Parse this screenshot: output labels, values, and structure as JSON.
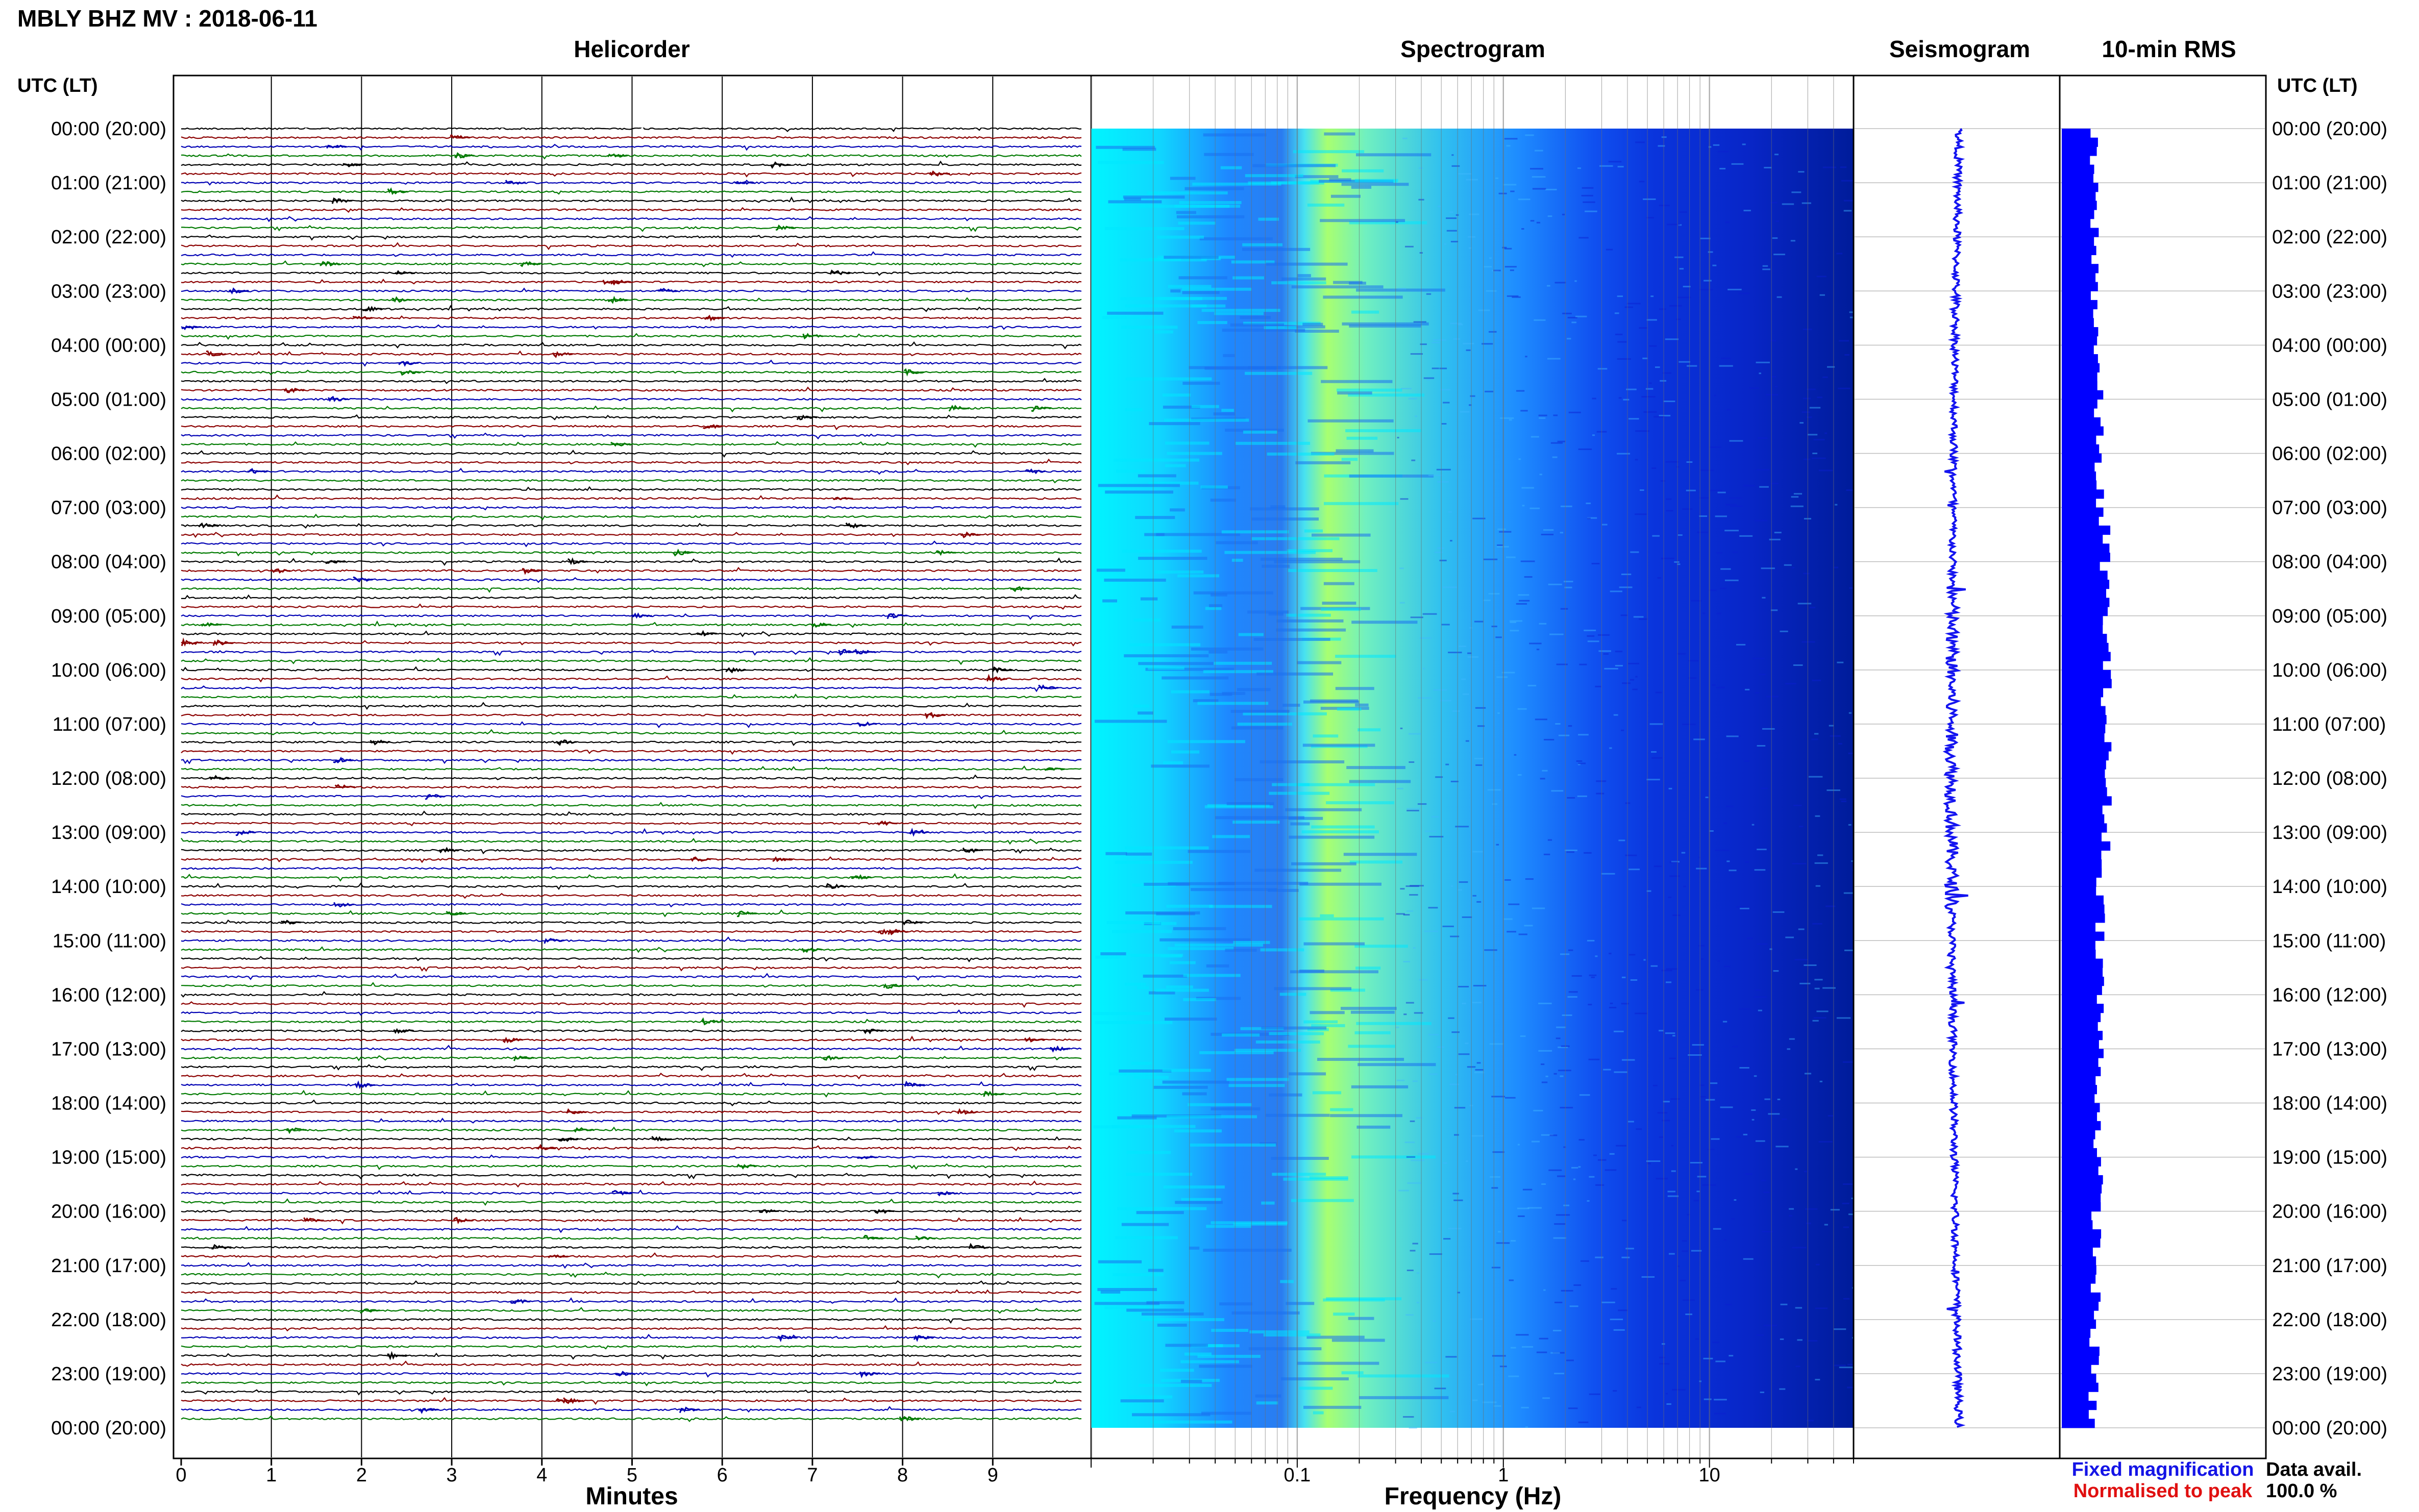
{
  "page": {
    "title": "MBLY BHZ MV : 2018-06-11",
    "left_axis_header": "UTC (LT)",
    "right_axis_header": "UTC (LT)"
  },
  "legend": {
    "fixed_label": "Fixed magnification",
    "fixed_color": "#1414e6",
    "normalised_label": "Normalised to peak",
    "normalised_color": "#e01010",
    "avail_label": "Data avail.",
    "avail_value": "100.0 %"
  },
  "colors": {
    "trace_cycle": [
      "#000000",
      "#8b0000",
      "#0000b4",
      "#007a00"
    ],
    "spectrogram_stops": [
      "#00ffff",
      "#1e90ff",
      "#0000e6",
      "#000080"
    ],
    "spectrogram_hot": "#a8ff70",
    "bar_blue": "#0000ff"
  },
  "chart_data": [
    {
      "type": "line",
      "panel": "helicorder",
      "title": "Helicorder",
      "xlabel": "Minutes",
      "ylabel": "",
      "xlim": [
        0,
        10
      ],
      "x_ticks": [
        0,
        1,
        2,
        3,
        4,
        5,
        6,
        7,
        8,
        9
      ],
      "rows_per_hour": 6,
      "row_minutes": 10,
      "time_labels_left": [
        "00:00 (20:00)",
        "01:00 (21:00)",
        "02:00 (22:00)",
        "03:00 (23:00)",
        "04:00 (00:00)",
        "05:00 (01:00)",
        "06:00 (02:00)",
        "07:00 (03:00)",
        "08:00 (04:00)",
        "09:00 (05:00)",
        "10:00 (06:00)",
        "11:00 (07:00)",
        "12:00 (08:00)",
        "13:00 (09:00)",
        "14:00 (10:00)",
        "15:00 (11:00)",
        "16:00 (12:00)",
        "17:00 (13:00)",
        "18:00 (14:00)",
        "19:00 (15:00)",
        "20:00 (16:00)",
        "21:00 (17:00)",
        "22:00 (18:00)",
        "23:00 (19:00)",
        "00:00 (20:00)"
      ]
    },
    {
      "type": "heatmap",
      "panel": "spectrogram",
      "title": "Spectrogram",
      "xlabel": "Frequency (Hz)",
      "ylabel": "",
      "x_scale": "log",
      "xlim": [
        0.01,
        50
      ],
      "x_tick_labels": [
        {
          "value": 0.1,
          "label": "0.1"
        },
        {
          "value": 1,
          "label": "1"
        },
        {
          "value": 10,
          "label": "10"
        }
      ],
      "peak_frequency_hz": 0.25
    },
    {
      "type": "line",
      "panel": "seismogram",
      "title": "Seismogram",
      "xlabel": "",
      "ylabel": ""
    },
    {
      "type": "bar",
      "panel": "rms",
      "title": "10-min RMS",
      "xlabel": "",
      "ylabel": "",
      "rows": 144,
      "time_labels_right": [
        "00:00 (20:00)",
        "01:00 (21:00)",
        "02:00 (22:00)",
        "03:00 (23:00)",
        "04:00 (00:00)",
        "05:00 (01:00)",
        "06:00 (02:00)",
        "07:00 (03:00)",
        "08:00 (04:00)",
        "09:00 (05:00)",
        "10:00 (06:00)",
        "11:00 (07:00)",
        "12:00 (08:00)",
        "13:00 (09:00)",
        "14:00 (10:00)",
        "15:00 (11:00)",
        "16:00 (12:00)",
        "17:00 (13:00)",
        "18:00 (14:00)",
        "19:00 (15:00)",
        "20:00 (16:00)",
        "21:00 (17:00)",
        "22:00 (18:00)",
        "23:00 (19:00)",
        "00:00 (20:00)"
      ]
    }
  ]
}
